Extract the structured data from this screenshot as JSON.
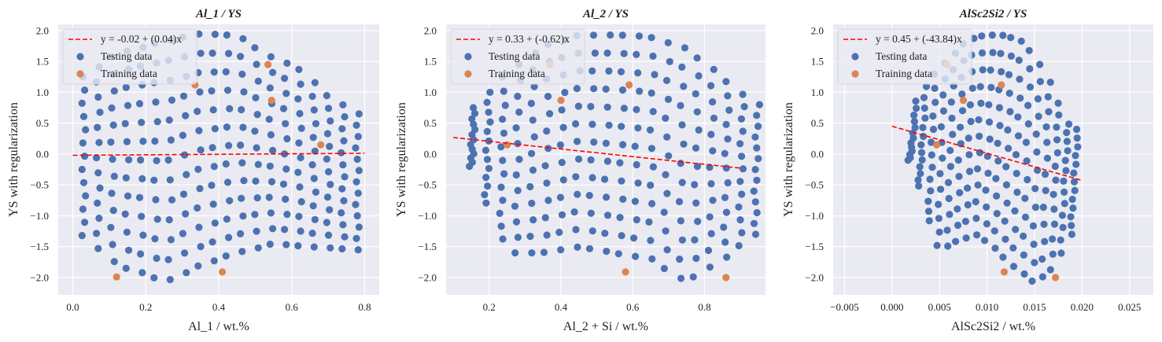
{
  "chart_data": [
    {
      "type": "scatter",
      "title": "Al_1 / YS",
      "xlabel": "Al_1 / wt.%",
      "ylabel": "YS with regularization",
      "xlim": [
        -0.04,
        0.84
      ],
      "ylim": [
        -2.28,
        2.1
      ],
      "xticks": [
        0.0,
        0.2,
        0.4,
        0.6,
        0.8
      ],
      "xtick_labels": [
        "0.0",
        "0.2",
        "0.4",
        "0.6",
        "0.8"
      ],
      "yticks": [
        -2.0,
        -1.5,
        -1.0,
        -0.5,
        0.0,
        0.5,
        1.0,
        1.5,
        2.0
      ],
      "ytick_labels": [
        "−2.0",
        "−1.5",
        "−1.0",
        "−0.5",
        "0.0",
        "0.5",
        "1.0",
        "1.5",
        "2.0"
      ],
      "legend": {
        "position": "top-left",
        "entries": [
          "y = -0.02 + (0.04)x",
          "Testing data",
          "Training data"
        ]
      },
      "fit_line": {
        "label": "y = -0.02 + (0.04)x",
        "intercept": -0.02,
        "slope": 0.04,
        "x_range": [
          0.0,
          0.8
        ],
        "color": "#ff0000"
      },
      "series": [
        {
          "name": "Testing data",
          "color": "#4c72b0",
          "x_min": 0.03,
          "x_max": 0.78,
          "y_min": -2.08,
          "y_max": 1.95,
          "cols": 20,
          "rows": 13,
          "skew": 0,
          "top_edge": [
            [
              0.03,
              1.25
            ],
            [
              0.12,
              1.62
            ],
            [
              0.22,
              1.78
            ],
            [
              0.35,
              1.95
            ],
            [
              0.45,
              1.92
            ],
            [
              0.55,
              1.55
            ],
            [
              0.62,
              1.38
            ],
            [
              0.7,
              0.95
            ],
            [
              0.78,
              0.65
            ]
          ],
          "bottom_edge": [
            [
              0.03,
              -1.32
            ],
            [
              0.12,
              -1.8
            ],
            [
              0.22,
              -1.98
            ],
            [
              0.25,
              -2.08
            ],
            [
              0.35,
              -1.8
            ],
            [
              0.45,
              -1.6
            ],
            [
              0.55,
              -1.45
            ],
            [
              0.65,
              -1.5
            ],
            [
              0.78,
              -1.55
            ]
          ]
        },
        {
          "name": "Training data",
          "color": "#dd8452",
          "points": [
            [
              0.335,
              1.12
            ],
            [
              0.535,
              1.45
            ],
            [
              0.545,
              0.87
            ],
            [
              0.68,
              0.15
            ],
            [
              0.12,
              -1.99
            ],
            [
              0.41,
              -1.91
            ]
          ]
        }
      ]
    },
    {
      "type": "scatter",
      "title": "Al_2 / YS",
      "xlabel": "Al_2 + Si / wt.%",
      "ylabel": "YS with regularization",
      "xlim": [
        0.08,
        0.97
      ],
      "ylim": [
        -2.28,
        2.1
      ],
      "xticks": [
        0.2,
        0.4,
        0.6,
        0.8
      ],
      "xtick_labels": [
        "0.2",
        "0.4",
        "0.6",
        "0.8"
      ],
      "yticks": [
        -2.0,
        -1.5,
        -1.0,
        -0.5,
        0.0,
        0.5,
        1.0,
        1.5,
        2.0
      ],
      "ytick_labels": [
        "−2.0",
        "−1.5",
        "−1.0",
        "−0.5",
        "0.0",
        "0.5",
        "1.0",
        "1.5",
        "2.0"
      ],
      "legend": {
        "position": "top-left",
        "entries": [
          "y = 0.33 + (-0.62)x",
          "Testing data",
          "Training data"
        ]
      },
      "fit_line": {
        "label": "y = 0.33 + (-0.62)x",
        "intercept": 0.33,
        "slope": -0.62,
        "x_range": [
          0.1,
          0.9
        ],
        "color": "#ff0000"
      },
      "series": [
        {
          "name": "Testing data",
          "color": "#4c72b0",
          "x_min": 0.15,
          "x_max": 0.94,
          "y_min": -2.08,
          "y_max": 1.95,
          "cols": 20,
          "rows": 13,
          "skew": 0.2,
          "top_edge": [
            [
              0.15,
              0.7
            ],
            [
              0.25,
              1.3
            ],
            [
              0.35,
              1.75
            ],
            [
              0.45,
              1.92
            ],
            [
              0.55,
              1.93
            ],
            [
              0.65,
              1.9
            ],
            [
              0.75,
              1.7
            ],
            [
              0.85,
              1.25
            ],
            [
              0.94,
              0.8
            ]
          ],
          "bottom_edge": [
            [
              0.15,
              -0.2
            ],
            [
              0.22,
              -1.2
            ],
            [
              0.25,
              -1.6
            ],
            [
              0.35,
              -1.6
            ],
            [
              0.45,
              -1.5
            ],
            [
              0.55,
              -1.6
            ],
            [
              0.65,
              -1.7
            ],
            [
              0.75,
              -2.08
            ],
            [
              0.85,
              -1.7
            ],
            [
              0.94,
              -1.3
            ]
          ]
        },
        {
          "name": "Training data",
          "color": "#dd8452",
          "points": [
            [
              0.25,
              0.15
            ],
            [
              0.4,
              0.87
            ],
            [
              0.59,
              1.12
            ],
            [
              0.58,
              -1.91
            ],
            [
              0.86,
              -2.0
            ],
            [
              0.37,
              1.45
            ]
          ]
        }
      ]
    },
    {
      "type": "scatter",
      "title": "AlSc2Si2 / YS",
      "xlabel": "AlSc2Si2 / wt.%",
      "ylabel": "YS with regularization",
      "xlim": [
        -0.0062,
        0.0275
      ],
      "ylim": [
        -2.28,
        2.1
      ],
      "xticks": [
        -0.005,
        0.0,
        0.005,
        0.01,
        0.015,
        0.02,
        0.025
      ],
      "xtick_labels": [
        "−0.005",
        "0.000",
        "0.005",
        "0.010",
        "0.015",
        "0.020",
        "0.025"
      ],
      "yticks": [
        -2.0,
        -1.5,
        -1.0,
        -0.5,
        0.0,
        0.5,
        1.0,
        1.5,
        2.0
      ],
      "ytick_labels": [
        "−2.0",
        "−1.5",
        "−1.0",
        "−0.5",
        "0.0",
        "0.5",
        "1.0",
        "1.5",
        "2.0"
      ],
      "legend": {
        "position": "top-left",
        "entries": [
          "y = 0.45 + (-43.84)x",
          "Testing data",
          "Training data"
        ]
      },
      "fit_line": {
        "label": "y = 0.45 + (-43.84)x",
        "intercept": 0.45,
        "slope": -43.84,
        "x_range": [
          0.0,
          0.02
        ],
        "color": "#ff0000"
      },
      "series": [
        {
          "name": "Testing data",
          "color": "#4c72b0",
          "x_min": 0.0018,
          "x_max": 0.0188,
          "y_min": -2.08,
          "y_max": 1.95,
          "cols": 18,
          "rows": 13,
          "skew": 0.75,
          "top_edge": [
            [
              0.0018,
              0.68
            ],
            [
              0.004,
              1.2
            ],
            [
              0.006,
              1.55
            ],
            [
              0.008,
              1.85
            ],
            [
              0.01,
              1.93
            ],
            [
              0.012,
              1.92
            ],
            [
              0.014,
              1.8
            ],
            [
              0.016,
              1.35
            ],
            [
              0.0188,
              0.4
            ]
          ],
          "bottom_edge": [
            [
              0.0018,
              -0.1
            ],
            [
              0.003,
              -0.6
            ],
            [
              0.004,
              -1.2
            ],
            [
              0.005,
              -1.55
            ],
            [
              0.007,
              -1.4
            ],
            [
              0.009,
              -1.3
            ],
            [
              0.011,
              -1.55
            ],
            [
              0.013,
              -1.85
            ],
            [
              0.015,
              -2.08
            ],
            [
              0.017,
              -1.85
            ],
            [
              0.0188,
              -1.3
            ]
          ]
        },
        {
          "name": "Training data",
          "color": "#dd8452",
          "points": [
            [
              0.0047,
              0.15
            ],
            [
              0.0075,
              0.87
            ],
            [
              0.0115,
              1.12
            ],
            [
              0.0058,
              1.45
            ],
            [
              0.0118,
              -1.91
            ],
            [
              0.0172,
              -2.0
            ]
          ]
        }
      ]
    }
  ]
}
